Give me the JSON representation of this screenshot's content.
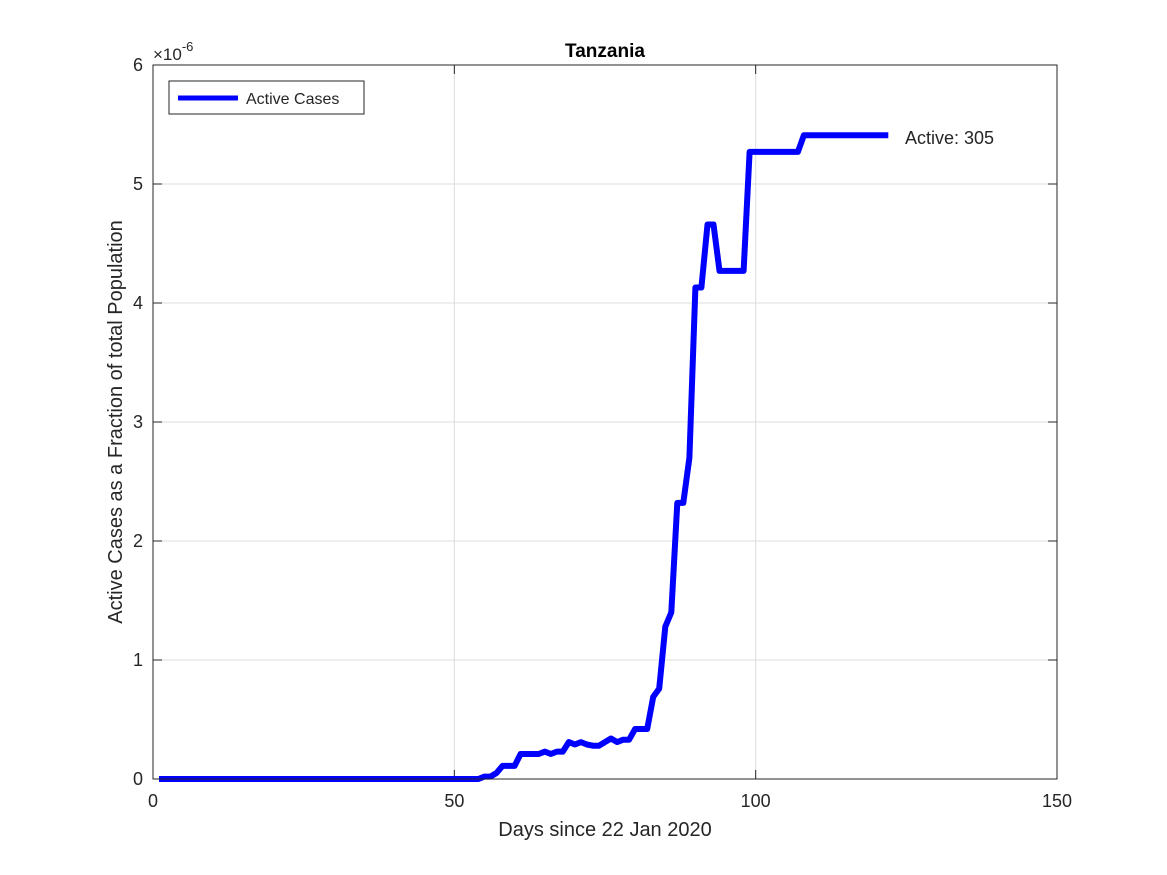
{
  "chart_data": {
    "type": "line",
    "title": "Tanzania",
    "xlabel": "Days since 22 Jan 2020",
    "ylabel": "Active Cases as a Fraction of total Population",
    "y_exponent_label": "×10",
    "y_exponent_power": "-6",
    "xlim": [
      0,
      150
    ],
    "ylim": [
      0,
      6
    ],
    "xticks": [
      0,
      50,
      100,
      150
    ],
    "yticks": [
      0,
      1,
      2,
      3,
      4,
      5,
      6
    ],
    "grid": true,
    "legend_position": "top-left",
    "line_color": "#0000ff",
    "series": [
      {
        "name": "Active Cases",
        "x": [
          1,
          54,
          55,
          56,
          57,
          58,
          59,
          60,
          61,
          62,
          63,
          64,
          65,
          66,
          67,
          68,
          69,
          70,
          71,
          72,
          73,
          74,
          75,
          76,
          77,
          78,
          79,
          80,
          81,
          82,
          83,
          84,
          85,
          86,
          87,
          88,
          89,
          90,
          91,
          92,
          93,
          94,
          95,
          96,
          97,
          98,
          99,
          100,
          101,
          102,
          103,
          104,
          105,
          106,
          107,
          108,
          109,
          110,
          111,
          112,
          113,
          114,
          115,
          116,
          117,
          118,
          119,
          120,
          121,
          122
        ],
        "values": [
          0,
          0,
          0.02,
          0.02,
          0.05,
          0.11,
          0.11,
          0.11,
          0.21,
          0.21,
          0.21,
          0.21,
          0.23,
          0.21,
          0.23,
          0.23,
          0.31,
          0.29,
          0.31,
          0.29,
          0.28,
          0.28,
          0.31,
          0.34,
          0.31,
          0.33,
          0.33,
          0.42,
          0.42,
          0.42,
          0.69,
          0.76,
          1.28,
          1.4,
          2.32,
          2.32,
          2.7,
          4.13,
          4.13,
          4.66,
          4.66,
          4.27,
          4.27,
          4.27,
          4.27,
          4.27,
          5.27,
          5.27,
          5.27,
          5.27,
          5.27,
          5.27,
          5.27,
          5.27,
          5.27,
          5.41,
          5.41,
          5.41,
          5.41,
          5.41,
          5.41,
          5.41,
          5.41,
          5.41,
          5.41,
          5.41,
          5.41,
          5.41,
          5.41,
          5.41
        ]
      }
    ],
    "annotation": "Active: 305"
  }
}
